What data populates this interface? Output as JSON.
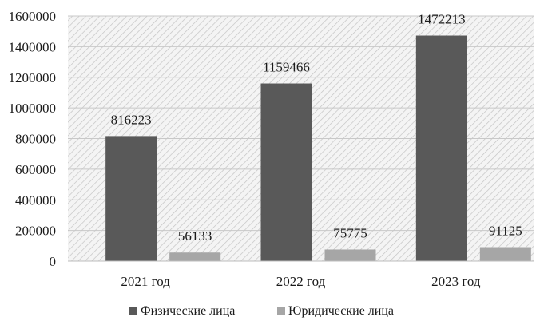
{
  "chart_data": {
    "type": "bar",
    "categories": [
      "2021 год",
      "2022 год",
      "2023 год"
    ],
    "series": [
      {
        "name": "Физические лица",
        "values": [
          816223,
          1159466,
          1472213
        ],
        "color": "#595959"
      },
      {
        "name": "Юридические лица",
        "values": [
          56133,
          75775,
          91125
        ],
        "color": "#a6a6a6"
      }
    ],
    "yticks": [
      "0",
      "200000",
      "400000",
      "600000",
      "800000",
      "1000000",
      "1200000",
      "1400000",
      "1600000"
    ],
    "ylim": [
      0,
      1600000
    ],
    "grid": true,
    "plot_background": "diagonal-hatch",
    "legend_position": "bottom",
    "data_labels": true
  }
}
